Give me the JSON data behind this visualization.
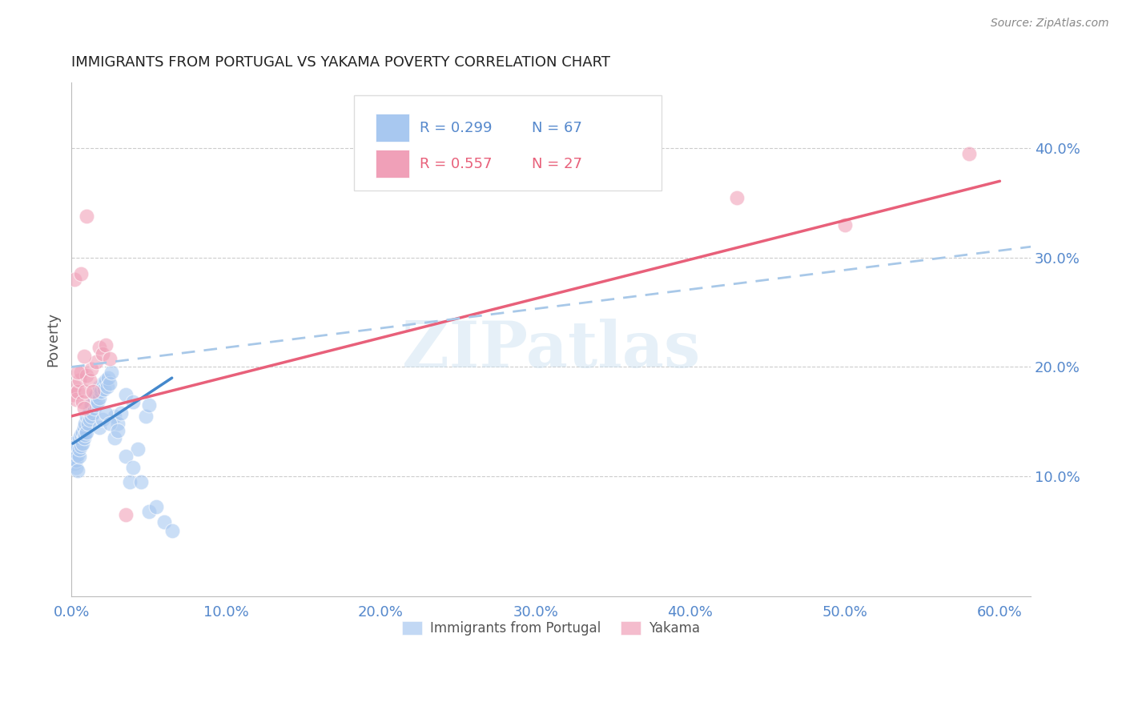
{
  "title": "IMMIGRANTS FROM PORTUGAL VS YAKAMA POVERTY CORRELATION CHART",
  "source": "Source: ZipAtlas.com",
  "ylabel": "Poverty",
  "xlabel_ticks": [
    "0.0%",
    "10.0%",
    "20.0%",
    "30.0%",
    "40.0%",
    "50.0%",
    "60.0%"
  ],
  "xtick_vals": [
    0.0,
    0.1,
    0.2,
    0.3,
    0.4,
    0.5,
    0.6
  ],
  "ylabel_ticks": [
    "10.0%",
    "20.0%",
    "30.0%",
    "40.0%"
  ],
  "ytick_vals": [
    0.1,
    0.2,
    0.3,
    0.4
  ],
  "xlim": [
    0.0,
    0.62
  ],
  "ylim": [
    -0.01,
    0.46
  ],
  "watermark": "ZIPatlas",
  "legend_blue_r": "R = 0.299",
  "legend_blue_n": "N = 67",
  "legend_pink_r": "R = 0.557",
  "legend_pink_n": "N = 27",
  "blue_color": "#a8c8f0",
  "pink_color": "#f0a0b8",
  "blue_line_color": "#4488cc",
  "pink_line_color": "#e8607a",
  "dashed_line_color": "#a8c8e8",
  "blue_scatter_x": [
    0.001,
    0.001,
    0.001,
    0.002,
    0.002,
    0.002,
    0.003,
    0.003,
    0.003,
    0.004,
    0.004,
    0.005,
    0.005,
    0.005,
    0.006,
    0.006,
    0.007,
    0.007,
    0.008,
    0.008,
    0.009,
    0.009,
    0.01,
    0.01,
    0.011,
    0.012,
    0.012,
    0.013,
    0.013,
    0.014,
    0.015,
    0.015,
    0.016,
    0.016,
    0.017,
    0.018,
    0.018,
    0.019,
    0.02,
    0.021,
    0.022,
    0.023,
    0.024,
    0.025,
    0.026,
    0.028,
    0.03,
    0.032,
    0.035,
    0.038,
    0.04,
    0.043,
    0.048,
    0.05,
    0.018,
    0.02,
    0.022,
    0.025,
    0.028,
    0.03,
    0.035,
    0.04,
    0.045,
    0.05,
    0.055,
    0.06,
    0.065
  ],
  "blue_scatter_y": [
    0.115,
    0.125,
    0.13,
    0.112,
    0.118,
    0.122,
    0.108,
    0.115,
    0.128,
    0.105,
    0.12,
    0.118,
    0.125,
    0.135,
    0.128,
    0.138,
    0.13,
    0.14,
    0.135,
    0.145,
    0.138,
    0.148,
    0.14,
    0.155,
    0.148,
    0.152,
    0.16,
    0.155,
    0.165,
    0.158,
    0.162,
    0.172,
    0.165,
    0.175,
    0.168,
    0.172,
    0.182,
    0.178,
    0.185,
    0.18,
    0.188,
    0.182,
    0.19,
    0.185,
    0.195,
    0.155,
    0.148,
    0.158,
    0.175,
    0.095,
    0.168,
    0.125,
    0.155,
    0.165,
    0.145,
    0.152,
    0.158,
    0.148,
    0.135,
    0.142,
    0.118,
    0.108,
    0.095,
    0.068,
    0.072,
    0.058,
    0.05
  ],
  "pink_scatter_x": [
    0.001,
    0.002,
    0.003,
    0.004,
    0.005,
    0.006,
    0.007,
    0.008,
    0.009,
    0.01,
    0.012,
    0.013,
    0.014,
    0.016,
    0.018,
    0.02,
    0.022,
    0.025,
    0.002,
    0.004,
    0.006,
    0.008,
    0.01,
    0.035,
    0.43,
    0.5,
    0.58
  ],
  "pink_scatter_y": [
    0.175,
    0.182,
    0.17,
    0.178,
    0.188,
    0.195,
    0.168,
    0.162,
    0.178,
    0.192,
    0.188,
    0.198,
    0.178,
    0.205,
    0.218,
    0.212,
    0.22,
    0.208,
    0.28,
    0.195,
    0.285,
    0.21,
    0.338,
    0.065,
    0.355,
    0.33,
    0.395
  ],
  "blue_line_x": [
    0.001,
    0.065
  ],
  "blue_line_y": [
    0.13,
    0.19
  ],
  "pink_line_x": [
    0.0,
    0.6
  ],
  "pink_line_y": [
    0.155,
    0.37
  ],
  "dashed_line_x": [
    0.0,
    0.62
  ],
  "dashed_line_y": [
    0.2,
    0.31
  ]
}
